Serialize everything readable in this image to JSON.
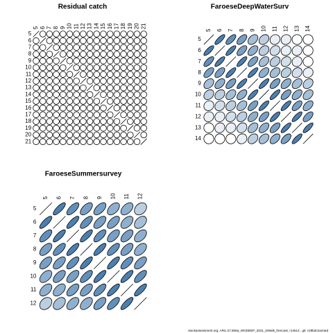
{
  "chart_data": [
    {
      "type": "corrplot",
      "title": "Residual catch",
      "labels": [
        "5",
        "6",
        "7",
        "8",
        "9",
        "10",
        "11",
        "12",
        "13",
        "14",
        "15",
        "16",
        "17",
        "18",
        "19",
        "20",
        "21"
      ],
      "colors": [
        "#ffffff",
        "#1f5f9c"
      ],
      "values": [
        [
          1,
          0,
          0,
          0,
          0,
          0,
          0,
          0,
          0,
          0,
          0,
          0,
          0,
          0,
          0,
          0,
          0
        ],
        [
          0,
          1,
          0,
          0,
          0,
          0,
          0,
          0,
          0,
          0,
          0,
          0,
          0,
          0,
          0,
          0,
          0
        ],
        [
          0,
          0,
          1,
          0,
          0,
          0,
          0,
          0,
          0,
          0,
          0,
          0,
          0,
          0,
          0,
          0,
          0
        ],
        [
          0,
          0,
          0,
          1,
          0,
          0,
          0,
          0,
          0,
          0,
          0,
          0,
          0,
          0,
          0,
          0,
          0
        ],
        [
          0,
          0,
          0,
          0,
          1,
          0,
          0,
          0,
          0,
          0,
          0,
          0,
          0,
          0,
          0,
          0,
          0
        ],
        [
          0,
          0,
          0,
          0,
          0,
          1,
          0,
          0,
          0,
          0,
          0,
          0,
          0,
          0,
          0,
          0,
          0
        ],
        [
          0,
          0,
          0,
          0,
          0,
          0,
          1,
          0,
          0,
          0,
          0,
          0,
          0,
          0,
          0,
          0,
          0
        ],
        [
          0,
          0,
          0,
          0,
          0,
          0,
          0,
          1,
          0,
          0,
          0,
          0,
          0,
          0,
          0,
          0,
          0
        ],
        [
          0,
          0,
          0,
          0,
          0,
          0,
          0,
          0,
          1,
          0,
          0,
          0,
          0,
          0,
          0,
          0,
          0
        ],
        [
          0,
          0,
          0,
          0,
          0,
          0,
          0,
          0,
          0,
          1,
          0,
          0,
          0,
          0,
          0,
          0,
          0
        ],
        [
          0,
          0,
          0,
          0,
          0,
          0,
          0,
          0,
          0,
          0,
          1,
          0,
          0,
          0,
          0,
          0,
          0
        ],
        [
          0,
          0,
          0,
          0,
          0,
          0,
          0,
          0,
          0,
          0,
          0,
          1,
          0,
          0,
          0,
          0,
          0
        ],
        [
          0,
          0,
          0,
          0,
          0,
          0,
          0,
          0,
          0,
          0,
          0,
          0,
          1,
          0,
          0,
          0,
          0
        ],
        [
          0,
          0,
          0,
          0,
          0,
          0,
          0,
          0,
          0,
          0,
          0,
          0,
          0,
          1,
          0,
          0,
          0
        ],
        [
          0,
          0,
          0,
          0,
          0,
          0,
          0,
          0,
          0,
          0,
          0,
          0,
          0,
          0,
          1,
          0,
          0
        ],
        [
          0,
          0,
          0,
          0,
          0,
          0,
          0,
          0,
          0,
          0,
          0,
          0,
          0,
          0,
          0,
          1,
          0
        ],
        [
          0,
          0,
          0,
          0,
          0,
          0,
          0,
          0,
          0,
          0,
          0,
          0,
          0,
          0,
          0,
          0,
          1
        ]
      ]
    },
    {
      "type": "corrplot",
      "title": "FaroeseDeepWaterSurv",
      "labels": [
        "5",
        "6",
        "7",
        "8",
        "9",
        "10",
        "11",
        "12",
        "13",
        "14"
      ],
      "colors": [
        "#ffffff",
        "#1f5f9c"
      ],
      "values": [
        [
          1,
          0.8,
          0.7,
          0.6,
          0.4,
          0.3,
          0.1,
          0.1,
          0,
          0
        ],
        [
          0.8,
          1,
          0.8,
          0.6,
          0.5,
          0.3,
          0.2,
          0.1,
          0.1,
          0
        ],
        [
          0.7,
          0.8,
          1,
          0.8,
          0.6,
          0.4,
          0.3,
          0.2,
          0.1,
          0
        ],
        [
          0.6,
          0.6,
          0.8,
          1,
          0.8,
          0.5,
          0.4,
          0.3,
          0.2,
          0.1
        ],
        [
          0.4,
          0.5,
          0.6,
          0.8,
          1,
          0.8,
          0.6,
          0.5,
          0.4,
          0.3
        ],
        [
          0.3,
          0.3,
          0.4,
          0.5,
          0.8,
          1,
          0.8,
          0.6,
          0.5,
          0.4
        ],
        [
          0.1,
          0.2,
          0.3,
          0.4,
          0.6,
          0.8,
          1,
          0.8,
          0.6,
          0.5
        ],
        [
          0.1,
          0.1,
          0.2,
          0.3,
          0.5,
          0.6,
          0.8,
          1,
          0.8,
          0.6
        ],
        [
          0,
          0.1,
          0.1,
          0.2,
          0.4,
          0.5,
          0.6,
          0.8,
          1,
          0.8
        ],
        [
          0,
          0,
          0,
          0.1,
          0.3,
          0.4,
          0.5,
          0.6,
          0.8,
          1
        ]
      ]
    },
    {
      "type": "corrplot",
      "title": "FaroeseSummersurvey",
      "labels": [
        "5",
        "6",
        "7",
        "8",
        "9",
        "10",
        "11",
        "12"
      ],
      "colors": [
        "#ffffff",
        "#1f5f9c"
      ],
      "values": [
        [
          1,
          0.8,
          0.7,
          0.6,
          0.6,
          0.5,
          0.5,
          0.3
        ],
        [
          0.8,
          1,
          0.8,
          0.7,
          0.6,
          0.6,
          0.5,
          0.4
        ],
        [
          0.7,
          0.8,
          1,
          0.8,
          0.7,
          0.6,
          0.6,
          0.5
        ],
        [
          0.6,
          0.7,
          0.8,
          1,
          0.8,
          0.7,
          0.6,
          0.5
        ],
        [
          0.6,
          0.6,
          0.7,
          0.8,
          1,
          0.8,
          0.7,
          0.6
        ],
        [
          0.5,
          0.6,
          0.6,
          0.7,
          0.8,
          1,
          0.8,
          0.7
        ],
        [
          0.5,
          0.5,
          0.6,
          0.6,
          0.7,
          0.8,
          1,
          0.8
        ],
        [
          0.3,
          0.4,
          0.5,
          0.5,
          0.6,
          0.7,
          0.8,
          1
        ]
      ]
    }
  ],
  "footnote": "stockassessment.org,  ARU.27.5b6a_WGDEEP_2021_DWalk_forecast,  r14514 ,  git: c28bdc2a44ad"
}
